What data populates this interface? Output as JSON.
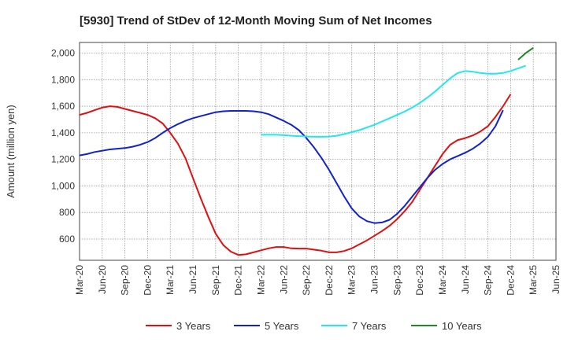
{
  "chart_data": {
    "type": "line",
    "title": "[5930]  Trend of StDev of 12-Month Moving Sum of Net Incomes",
    "ylabel": "Amount (million yen)",
    "xlabel": "",
    "ylim": [
      440,
      2080
    ],
    "yticks": [
      600,
      800,
      1000,
      1200,
      1400,
      1600,
      1800,
      2000
    ],
    "ytick_labels": [
      "600",
      "800",
      "1,000",
      "1,200",
      "1,400",
      "1,600",
      "1,800",
      "2,000"
    ],
    "x_start": "2020-03",
    "xtick_labels": [
      "Mar-20",
      "Jun-20",
      "Sep-20",
      "Dec-20",
      "Mar-21",
      "Jun-21",
      "Sep-21",
      "Dec-21",
      "Mar-22",
      "Jun-22",
      "Sep-22",
      "Dec-22",
      "Mar-23",
      "Jun-23",
      "Sep-23",
      "Dec-23",
      "Mar-24",
      "Jun-24",
      "Sep-24",
      "Dec-24",
      "Mar-25",
      "Jun-25"
    ],
    "grid": true,
    "legend_position": "bottom",
    "series": [
      {
        "name": "3 Years",
        "color": "#dd1111",
        "x": [
          "2020-03",
          "2020-04",
          "2020-05",
          "2020-06",
          "2020-07",
          "2020-08",
          "2020-09",
          "2020-10",
          "2020-11",
          "2020-12",
          "2021-01",
          "2021-02",
          "2021-03",
          "2021-04",
          "2021-05",
          "2021-06",
          "2021-07",
          "2021-08",
          "2021-09",
          "2021-10",
          "2021-11",
          "2021-12",
          "2022-01",
          "2022-02",
          "2022-03",
          "2022-04",
          "2022-05",
          "2022-06",
          "2022-07",
          "2022-08",
          "2022-09",
          "2022-10",
          "2022-11",
          "2022-12",
          "2023-01",
          "2023-02",
          "2023-03",
          "2023-04",
          "2023-05",
          "2023-06",
          "2023-07",
          "2023-08",
          "2023-09",
          "2023-10",
          "2023-11",
          "2023-12",
          "2024-01",
          "2024-02",
          "2024-03",
          "2024-04",
          "2024-05",
          "2024-06",
          "2024-07",
          "2024-08",
          "2024-09",
          "2024-10",
          "2024-11",
          "2024-12",
          "2025-01",
          "2025-02",
          "2025-03"
        ],
        "values": [
          1535,
          1550,
          1570,
          1590,
          1600,
          1595,
          1580,
          1565,
          1550,
          1535,
          1510,
          1470,
          1400,
          1320,
          1210,
          1060,
          910,
          770,
          640,
          555,
          505,
          480,
          485,
          500,
          515,
          530,
          540,
          540,
          530,
          528,
          528,
          520,
          512,
          500,
          500,
          510,
          530,
          560,
          590,
          625,
          660,
          700,
          750,
          810,
          880,
          970,
          1060,
          1150,
          1240,
          1310,
          1345,
          1360,
          1380,
          1410,
          1450,
          1520,
          1600,
          1690,
          null,
          null,
          null
        ]
      },
      {
        "name": "5 Years",
        "color": "#1122cc",
        "x": [
          "2020-03",
          "2020-04",
          "2020-05",
          "2020-06",
          "2020-07",
          "2020-08",
          "2020-09",
          "2020-10",
          "2020-11",
          "2020-12",
          "2021-01",
          "2021-02",
          "2021-03",
          "2021-04",
          "2021-05",
          "2021-06",
          "2021-07",
          "2021-08",
          "2021-09",
          "2021-10",
          "2021-11",
          "2021-12",
          "2022-01",
          "2022-02",
          "2022-03",
          "2022-04",
          "2022-05",
          "2022-06",
          "2022-07",
          "2022-08",
          "2022-09",
          "2022-10",
          "2022-11",
          "2022-12",
          "2023-01",
          "2023-02",
          "2023-03",
          "2023-04",
          "2023-05",
          "2023-06",
          "2023-07",
          "2023-08",
          "2023-09",
          "2023-10",
          "2023-11",
          "2023-12",
          "2024-01",
          "2024-02",
          "2024-03",
          "2024-04",
          "2024-05",
          "2024-06",
          "2024-07",
          "2024-08",
          "2024-09",
          "2024-10",
          "2024-11",
          "2024-12",
          "2025-01",
          "2025-02",
          "2025-03"
        ],
        "values": [
          1230,
          1240,
          1255,
          1265,
          1275,
          1280,
          1285,
          1295,
          1310,
          1330,
          1360,
          1400,
          1435,
          1465,
          1490,
          1510,
          1525,
          1540,
          1555,
          1562,
          1565,
          1565,
          1565,
          1562,
          1555,
          1540,
          1515,
          1490,
          1460,
          1420,
          1360,
          1290,
          1210,
          1120,
          1020,
          920,
          830,
          770,
          735,
          720,
          725,
          745,
          790,
          850,
          920,
          990,
          1060,
          1120,
          1165,
          1200,
          1225,
          1250,
          1280,
          1320,
          1370,
          1450,
          1570,
          null,
          null,
          null,
          null
        ]
      },
      {
        "name": "7 Years",
        "color": "#22e8ee",
        "x": [
          "2022-03",
          "2022-04",
          "2022-05",
          "2022-06",
          "2022-07",
          "2022-08",
          "2022-09",
          "2022-10",
          "2022-11",
          "2022-12",
          "2023-01",
          "2023-02",
          "2023-03",
          "2023-04",
          "2023-05",
          "2023-06",
          "2023-07",
          "2023-08",
          "2023-09",
          "2023-10",
          "2023-11",
          "2023-12",
          "2024-01",
          "2024-02",
          "2024-03",
          "2024-04",
          "2024-05",
          "2024-06",
          "2024-07",
          "2024-08",
          "2024-09",
          "2024-10",
          "2024-11",
          "2024-12",
          "2025-01",
          "2025-02",
          "2025-03"
        ],
        "values": [
          1385,
          1385,
          1385,
          1382,
          1378,
          1375,
          1372,
          1370,
          1370,
          1372,
          1378,
          1390,
          1405,
          1420,
          1440,
          1460,
          1485,
          1510,
          1535,
          1560,
          1590,
          1625,
          1665,
          1710,
          1760,
          1810,
          1850,
          1865,
          1860,
          1850,
          1845,
          1845,
          1850,
          1865,
          1885,
          1905,
          null
        ]
      },
      {
        "name": "10 Years",
        "color": "#228822",
        "x": [
          "2025-01",
          "2025-02",
          "2025-03"
        ],
        "values": [
          1950,
          2000,
          2040
        ]
      }
    ]
  }
}
